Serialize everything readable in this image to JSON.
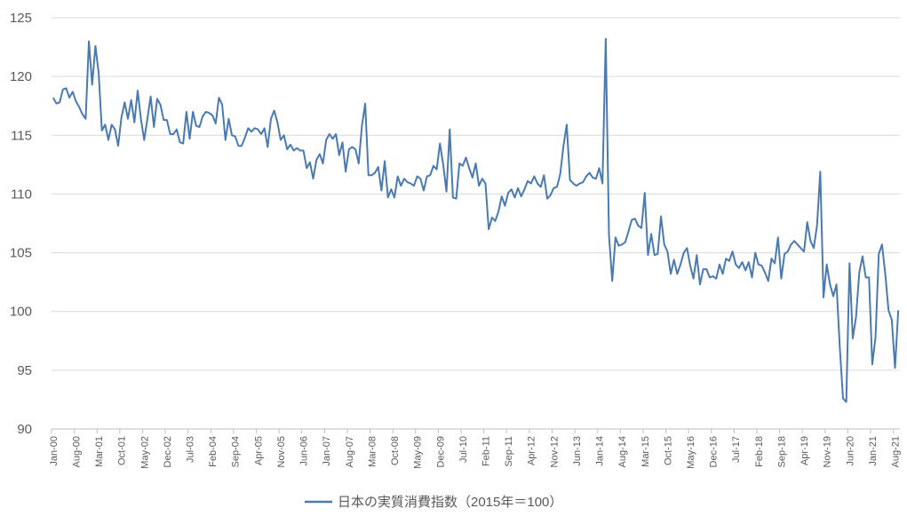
{
  "chart_data": {
    "type": "line",
    "title": "",
    "xlabel": "",
    "ylabel": "",
    "ylim": [
      90,
      125
    ],
    "yticks": [
      90,
      95,
      100,
      105,
      110,
      115,
      120,
      125
    ],
    "grid": "horizontal",
    "legend_position": "bottom",
    "x_start": "Jan-00",
    "x_tick_labels": [
      "Jan-00",
      "Aug-00",
      "Mar-01",
      "Oct-01",
      "May-02",
      "Dec-02",
      "Jul-03",
      "Feb-04",
      "Sep-04",
      "Apr-05",
      "Nov-05",
      "Jun-06",
      "Jan-07",
      "Aug-07",
      "Mar-08",
      "Oct-08",
      "May-09",
      "Dec-09",
      "Jul-10",
      "Feb-11",
      "Sep-11",
      "Apr-12",
      "Nov-12",
      "Jun-13",
      "Jan-14",
      "Aug-14",
      "Mar-15",
      "Oct-15",
      "May-16",
      "Dec-16",
      "Jul-17",
      "Feb-18",
      "Sep-18",
      "Apr-19",
      "Nov-19",
      "Jun-20",
      "Jan-21",
      "Aug-21"
    ],
    "series": [
      {
        "name": "日本の実質消費指数（2015年＝100）",
        "color": "#4a7ab0",
        "values": [
          118.2,
          117.7,
          117.8,
          118.9,
          119.0,
          118.2,
          118.7,
          117.9,
          117.4,
          116.8,
          116.4,
          123.0,
          119.3,
          122.6,
          120.3,
          115.4,
          115.9,
          114.6,
          115.9,
          115.5,
          114.1,
          116.5,
          117.8,
          116.4,
          118.0,
          116.1,
          118.8,
          116.4,
          114.6,
          116.4,
          118.3,
          115.7,
          118.1,
          117.6,
          116.3,
          116.3,
          115.1,
          115.1,
          115.5,
          114.4,
          114.3,
          117.0,
          114.7,
          117.0,
          115.8,
          115.7,
          116.6,
          117.0,
          116.9,
          116.7,
          116.0,
          118.2,
          117.6,
          114.6,
          116.4,
          115.0,
          114.9,
          114.1,
          114.1,
          114.8,
          115.6,
          115.3,
          115.6,
          115.5,
          115.1,
          115.6,
          114.0,
          116.4,
          117.1,
          116.1,
          114.6,
          115.0,
          113.8,
          114.2,
          113.7,
          113.9,
          113.7,
          113.7,
          112.2,
          112.7,
          111.3,
          112.9,
          113.4,
          112.6,
          114.6,
          115.1,
          114.7,
          115.1,
          113.3,
          114.4,
          111.9,
          113.8,
          114.0,
          113.8,
          112.6,
          115.8,
          117.7,
          111.6,
          111.6,
          111.8,
          112.3,
          110.3,
          112.8,
          109.7,
          110.4,
          109.7,
          111.5,
          110.7,
          111.3,
          111.0,
          110.9,
          110.7,
          111.5,
          111.3,
          110.3,
          111.5,
          111.6,
          112.4,
          112.1,
          114.3,
          112.5,
          110.2,
          115.5,
          109.7,
          109.6,
          112.6,
          112.4,
          113.1,
          112.2,
          111.4,
          112.6,
          110.7,
          111.3,
          110.9,
          107.0,
          108.0,
          107.7,
          108.5,
          109.8,
          109.0,
          110.1,
          110.4,
          109.7,
          110.5,
          109.8,
          110.4,
          111.1,
          110.9,
          111.5,
          110.9,
          110.6,
          111.6,
          109.6,
          109.9,
          110.5,
          110.6,
          111.7,
          114.1,
          115.9,
          111.2,
          110.9,
          110.7,
          110.9,
          111.0,
          111.5,
          111.8,
          111.4,
          111.3,
          112.2,
          110.9,
          123.2,
          106.5,
          102.6,
          106.3,
          105.6,
          105.7,
          105.9,
          106.8,
          107.8,
          107.9,
          107.3,
          107.1,
          110.1,
          104.8,
          106.6,
          104.8,
          104.9,
          108.1,
          105.7,
          105.1,
          103.2,
          104.4,
          103.2,
          104.0,
          105.0,
          105.4,
          103.9,
          102.8,
          104.8,
          102.3,
          103.6,
          103.6,
          102.9,
          103.0,
          102.8,
          104.0,
          103.2,
          104.5,
          104.3,
          105.1,
          104.0,
          103.7,
          104.2,
          103.5,
          104.2,
          102.9,
          105.0,
          104.0,
          103.9,
          103.3,
          102.6,
          104.5,
          104.1,
          106.3,
          102.8,
          104.9,
          105.1,
          105.7,
          106.0,
          105.7,
          105.4,
          105.1,
          107.6,
          106.0,
          105.4,
          107.3,
          111.9,
          101.2,
          104.0,
          102.3,
          101.3,
          102.3,
          97.0,
          92.6,
          92.3,
          104.1,
          97.7,
          99.5,
          103.3,
          104.7,
          102.9,
          102.9,
          95.5,
          97.8,
          104.9,
          105.7,
          103.2,
          100.1,
          99.3,
          95.2,
          100.1
        ]
      }
    ]
  }
}
